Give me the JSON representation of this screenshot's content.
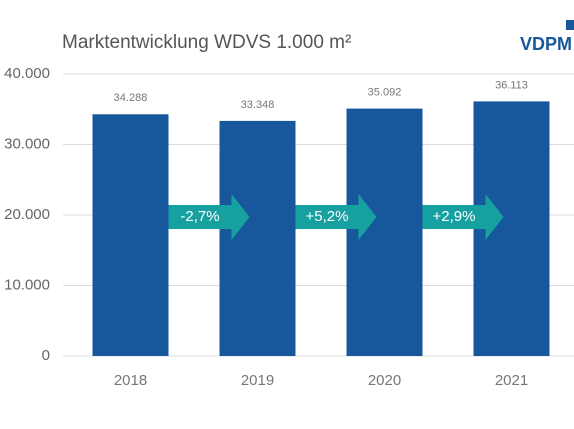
{
  "chart_data": {
    "type": "bar",
    "title": "Marktentwicklung WDVS 1.000 m²",
    "categories": [
      "2018",
      "2019",
      "2020",
      "2021"
    ],
    "values": [
      34288,
      33348,
      35092,
      36113
    ],
    "value_labels": [
      "34.288",
      "33.348",
      "35.092",
      "36.113"
    ],
    "color": "#17589c",
    "arrow_color": "#17a0a0",
    "annotations": [
      "-2,7%",
      "+5,2%",
      "+2,9%"
    ],
    "ylim": [
      0,
      40000
    ],
    "yticks": [
      0,
      {
        "value": 10000,
        "label": "10.000"
      },
      {
        "value": 20000,
        "label": "20.000"
      },
      {
        "value": 30000,
        "label": "30.000"
      },
      {
        "value": 40000,
        "label": "40.000"
      }
    ],
    "grid": true
  },
  "logo": "VDPM"
}
